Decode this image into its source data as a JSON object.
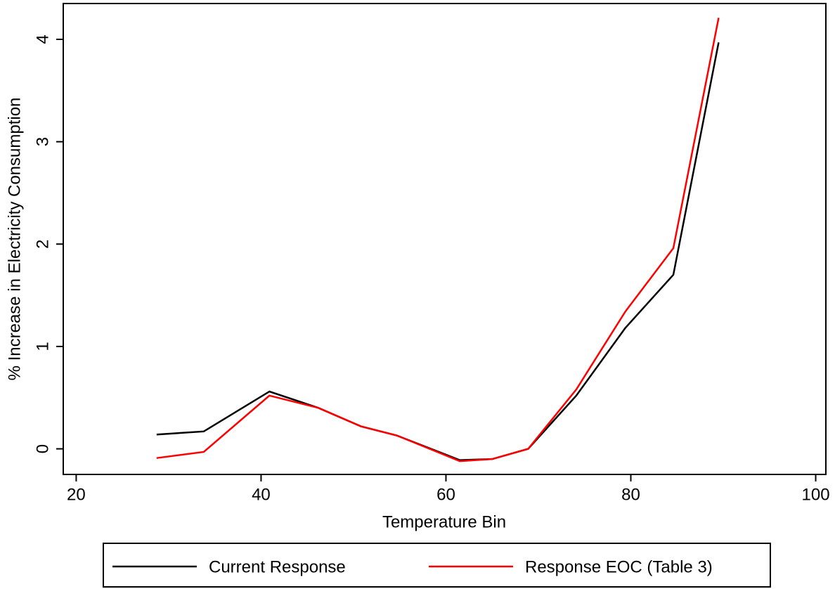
{
  "chart_data": {
    "type": "line",
    "x_label": "Temperature Bin",
    "y_label": "% Increase in Electricity Consumption",
    "x": [
      28.7,
      33.8,
      40.9,
      46.2,
      50.8,
      54.7,
      61.5,
      65.0,
      68.9,
      74.1,
      79.4,
      84.6,
      89.5
    ],
    "series": [
      {
        "name": "Current Response",
        "color": "#000000",
        "values": [
          0.14,
          0.17,
          0.56,
          0.4,
          0.22,
          0.13,
          -0.11,
          -0.1,
          0.0,
          0.52,
          1.18,
          1.7,
          3.97
        ]
      },
      {
        "name": "Response EOC (Table 3)",
        "color": "#ff0000",
        "values": [
          -0.09,
          -0.03,
          0.52,
          0.4,
          0.22,
          0.13,
          -0.12,
          -0.1,
          0.0,
          0.58,
          1.34,
          1.96,
          4.21
        ]
      }
    ],
    "xlim": [
      18.6,
      101.1
    ],
    "xticks": [
      20,
      40,
      60,
      80,
      100
    ],
    "ylim": [
      -0.25,
      4.35
    ],
    "yticks": [
      0,
      1,
      2,
      3,
      4
    ],
    "grid": false,
    "legend": "bottom"
  }
}
